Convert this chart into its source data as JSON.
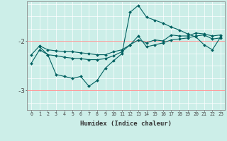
{
  "xlabel": "Humidex (Indice chaleur)",
  "bg_color": "#cceee8",
  "line_color": "#006060",
  "grid_white": "#ffffff",
  "grid_red": "#ff9999",
  "series": {
    "line1": {
      "x": [
        0,
        1,
        2,
        3,
        4,
        5,
        6,
        7,
        8,
        9,
        10,
        11,
        12,
        13,
        14,
        15,
        16,
        17,
        18,
        19,
        20,
        21,
        22,
        23
      ],
      "y": [
        -2.28,
        -2.1,
        -2.18,
        -2.2,
        -2.22,
        -2.22,
        -2.24,
        -2.26,
        -2.28,
        -2.28,
        -2.22,
        -2.18,
        -2.08,
        -1.98,
        -2.04,
        -1.98,
        -2.0,
        -1.88,
        -1.9,
        -1.9,
        -1.84,
        -1.86,
        -1.9,
        -1.88
      ]
    },
    "line2": {
      "x": [
        0,
        1,
        2,
        3,
        4,
        5,
        6,
        7,
        8,
        9,
        10,
        11,
        12,
        13,
        14,
        15,
        16,
        17,
        18,
        19,
        20,
        21,
        22,
        23
      ],
      "y": [
        -2.45,
        -2.18,
        -2.28,
        -2.3,
        -2.33,
        -2.35,
        -2.36,
        -2.38,
        -2.38,
        -2.36,
        -2.3,
        -2.22,
        -2.08,
        -1.9,
        -2.12,
        -2.08,
        -2.04,
        -1.98,
        -1.96,
        -1.94,
        -1.9,
        -1.88,
        -1.96,
        -1.94
      ]
    },
    "line3": {
      "x": [
        1,
        2,
        3,
        4,
        5,
        6,
        7,
        8,
        9,
        10,
        11,
        12,
        13,
        14,
        15,
        16,
        17,
        18,
        19,
        20,
        21,
        22,
        23
      ],
      "y": [
        -2.12,
        -2.28,
        -2.68,
        -2.72,
        -2.76,
        -2.72,
        -2.92,
        -2.8,
        -2.55,
        -2.4,
        -2.26,
        -1.42,
        -1.28,
        -1.52,
        -1.58,
        -1.64,
        -1.72,
        -1.78,
        -1.86,
        -1.92,
        -2.08,
        -2.18,
        -1.92
      ]
    }
  },
  "yticks": [
    -3,
    -2
  ],
  "ylim": [
    -3.4,
    -1.2
  ],
  "xlim": [
    -0.5,
    23.5
  ],
  "xticks": [
    0,
    1,
    2,
    3,
    4,
    5,
    6,
    7,
    8,
    9,
    10,
    11,
    12,
    13,
    14,
    15,
    16,
    17,
    18,
    19,
    20,
    21,
    22,
    23
  ],
  "figsize": [
    3.2,
    2.0
  ],
  "dpi": 100
}
